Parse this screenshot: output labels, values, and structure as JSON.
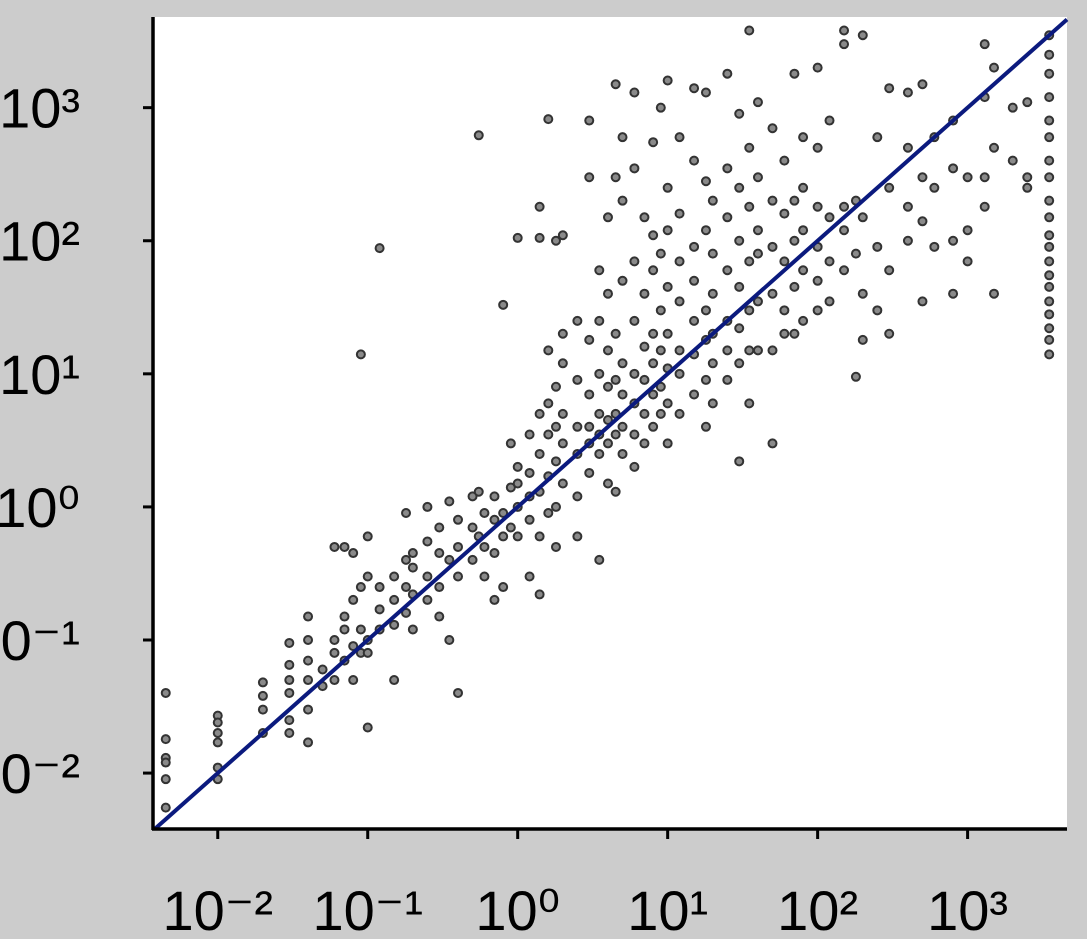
{
  "chart_data": {
    "type": "scatter",
    "xscale": "log",
    "yscale": "log",
    "xlim": [
      0.0037,
      4600
    ],
    "ylim": [
      0.0038,
      4800
    ],
    "xticks": [
      {
        "value": 0.01,
        "label": "10⁻²"
      },
      {
        "value": 0.1,
        "label": "10⁻¹"
      },
      {
        "value": 1,
        "label": "10⁰"
      },
      {
        "value": 10,
        "label": "10¹"
      },
      {
        "value": 100,
        "label": "10²"
      },
      {
        "value": 1000,
        "label": "10³"
      }
    ],
    "yticks": [
      {
        "value": 0.01,
        "label": "10⁻²"
      },
      {
        "value": 0.1,
        "label": "10⁻¹"
      },
      {
        "value": 1,
        "label": "10⁰"
      },
      {
        "value": 10,
        "label": "10¹"
      },
      {
        "value": 100,
        "label": "10²"
      },
      {
        "value": 1000,
        "label": "10³"
      }
    ],
    "color": "#8a8a8a",
    "edge_color": "#333333",
    "diagonal": true,
    "diagonal_color": "#0b1a7e",
    "x": [
      0.0045,
      0.0045,
      0.0045,
      0.0045,
      0.0045,
      0.0045,
      0.01,
      0.01,
      0.01,
      0.01,
      0.01,
      0.01,
      0.02,
      0.02,
      0.02,
      0.02,
      0.03,
      0.03,
      0.03,
      0.03,
      0.03,
      0.03,
      0.04,
      0.04,
      0.04,
      0.04,
      0.04,
      0.04,
      0.05,
      0.05,
      0.06,
      0.06,
      0.06,
      0.06,
      0.07,
      0.07,
      0.07,
      0.07,
      0.08,
      0.08,
      0.08,
      0.08,
      0.09,
      0.09,
      0.09,
      0.09,
      0.1,
      0.1,
      0.1,
      0.1,
      0.1,
      0.12,
      0.12,
      0.12,
      0.12,
      0.15,
      0.15,
      0.15,
      0.15,
      0.18,
      0.18,
      0.18,
      0.18,
      0.2,
      0.2,
      0.2,
      0.2,
      0.25,
      0.25,
      0.25,
      0.25,
      0.3,
      0.3,
      0.3,
      0.3,
      0.35,
      0.35,
      0.35,
      0.4,
      0.4,
      0.4,
      0.4,
      0.5,
      0.5,
      0.5,
      0.55,
      0.55,
      0.55,
      0.6,
      0.6,
      0.6,
      0.7,
      0.7,
      0.7,
      0.7,
      0.8,
      0.8,
      0.8,
      0.8,
      0.9,
      0.9,
      0.9,
      1,
      1,
      1,
      1,
      1,
      1.2,
      1.2,
      1.2,
      1.2,
      1.2,
      1.4,
      1.4,
      1.4,
      1.4,
      1.4,
      1.4,
      1.4,
      1.6,
      1.6,
      1.6,
      1.6,
      1.6,
      1.6,
      1.8,
      1.8,
      1.8,
      1.8,
      1.8,
      1.8,
      2,
      2,
      2,
      2,
      2,
      2,
      2.5,
      2.5,
      2.5,
      2.5,
      2.5,
      2.5,
      3,
      3,
      3,
      3,
      3,
      3,
      3,
      3.5,
      3.5,
      3.5,
      3.5,
      3.5,
      3.5,
      3.5,
      4,
      4,
      4,
      4,
      4,
      4,
      4,
      4.5,
      4.5,
      4.5,
      4.5,
      4.5,
      4.5,
      4.5,
      5,
      5,
      5,
      5,
      5,
      5,
      5,
      6,
      6,
      6,
      6,
      6,
      6,
      6,
      6,
      7,
      7,
      7,
      7,
      7,
      7,
      8,
      8,
      8,
      8,
      8,
      8,
      8,
      9,
      9,
      9,
      9,
      9,
      9,
      10,
      10,
      10,
      10,
      10,
      10,
      10,
      10,
      12,
      12,
      12,
      12,
      12,
      12,
      12,
      15,
      15,
      15,
      15,
      15,
      15,
      15,
      18,
      18,
      18,
      18,
      18,
      18,
      18,
      20,
      20,
      20,
      20,
      20,
      20,
      25,
      25,
      25,
      25,
      25,
      25,
      25,
      30,
      30,
      30,
      30,
      30,
      30,
      30,
      35,
      35,
      35,
      35,
      35,
      35,
      35,
      40,
      40,
      40,
      40,
      40,
      40,
      50,
      50,
      50,
      50,
      50,
      50,
      60,
      60,
      60,
      60,
      60,
      70,
      70,
      70,
      70,
      70,
      80,
      80,
      80,
      80,
      80,
      100,
      100,
      100,
      100,
      100,
      100,
      120,
      120,
      120,
      120,
      150,
      150,
      150,
      150,
      150,
      180,
      180,
      180,
      200,
      200,
      200,
      200,
      250,
      250,
      250,
      300,
      300,
      300,
      300,
      400,
      400,
      400,
      400,
      500,
      500,
      500,
      500,
      600,
      600,
      600,
      800,
      800,
      800,
      800,
      1000,
      1000,
      1000,
      1300,
      1300,
      1300,
      1300,
      1500,
      1500,
      1500,
      2000,
      2000,
      2500,
      2500,
      2500,
      3500,
      3500,
      3500,
      3500,
      3500,
      3500,
      3500,
      3500,
      3500,
      3500,
      3500,
      3500,
      3500,
      3500,
      3500,
      3500,
      3500,
      3500,
      3500,
      3500
    ],
    "values": [
      0.04,
      0.018,
      0.013,
      0.012,
      0.009,
      0.0055,
      0.027,
      0.024,
      0.02,
      0.017,
      0.011,
      0.009,
      0.048,
      0.038,
      0.03,
      0.02,
      0.095,
      0.065,
      0.05,
      0.04,
      0.025,
      0.02,
      0.15,
      0.1,
      0.07,
      0.05,
      0.03,
      0.017,
      0.06,
      0.045,
      0.5,
      0.1,
      0.08,
      0.05,
      0.5,
      0.15,
      0.12,
      0.07,
      0.45,
      0.2,
      0.09,
      0.05,
      14,
      0.25,
      0.12,
      0.08,
      0.6,
      0.3,
      0.1,
      0.08,
      0.022,
      88,
      0.25,
      0.17,
      0.12,
      0.3,
      0.2,
      0.13,
      0.05,
      0.9,
      0.4,
      0.25,
      0.16,
      0.45,
      0.35,
      0.22,
      0.12,
      1.0,
      0.55,
      0.3,
      0.2,
      0.7,
      0.45,
      0.25,
      0.15,
      1.1,
      0.4,
      0.1,
      0.8,
      0.5,
      0.3,
      0.04,
      1.2,
      0.7,
      0.4,
      620,
      1.3,
      0.6,
      0.9,
      0.5,
      0.3,
      1.2,
      0.8,
      0.45,
      0.2,
      33,
      0.9,
      0.6,
      0.25,
      3,
      1.4,
      0.7,
      105,
      2,
      1.5,
      1,
      0.6,
      3.5,
      1.8,
      1.2,
      0.8,
      0.3,
      180,
      105,
      5,
      2.5,
      1.3,
      0.6,
      0.22,
      820,
      15,
      6,
      3.5,
      1.7,
      0.9,
      100,
      8,
      4,
      2.2,
      1,
      0.5,
      110,
      20,
      12,
      5,
      3,
      1.5,
      25,
      9,
      4,
      2.5,
      1.2,
      0.6,
      800,
      300,
      18,
      7,
      4,
      3,
      1.8,
      60,
      25,
      10,
      5,
      3.5,
      2.5,
      0.4,
      150,
      40,
      15,
      8,
      4.5,
      3,
      1.5,
      1500,
      300,
      20,
      9,
      5,
      3.5,
      1.3,
      600,
      200,
      50,
      12,
      7,
      4,
      2.5,
      1300,
      350,
      70,
      25,
      10,
      6,
      3.5,
      2,
      150,
      40,
      16,
      9,
      5,
      3,
      550,
      110,
      60,
      20,
      12,
      7,
      4,
      1000,
      80,
      30,
      15,
      8,
      5,
      1600,
      250,
      120,
      45,
      20,
      11,
      6,
      3,
      600,
      160,
      70,
      35,
      15,
      10,
      5,
      1400,
      400,
      90,
      50,
      25,
      14,
      7,
      1300,
      280,
      120,
      30,
      18,
      9,
      4,
      200,
      80,
      40,
      20,
      12,
      6,
      1800,
      350,
      150,
      60,
      25,
      15,
      9,
      900,
      250,
      100,
      45,
      22,
      12,
      2.2,
      3800,
      500,
      180,
      70,
      30,
      15,
      6,
      1100,
      300,
      120,
      80,
      35,
      15,
      700,
      200,
      90,
      40,
      15,
      3,
      400,
      160,
      70,
      30,
      20,
      1800,
      200,
      100,
      45,
      20,
      600,
      250,
      120,
      60,
      25,
      2000,
      500,
      180,
      90,
      50,
      30,
      800,
      150,
      70,
      35,
      3800,
      3000,
      180,
      120,
      60,
      200,
      80,
      9.5,
      3500,
      150,
      40,
      18,
      600,
      90,
      30,
      1400,
      250,
      60,
      20,
      1300,
      500,
      180,
      100,
      1500,
      300,
      140,
      35,
      600,
      250,
      90,
      800,
      350,
      100,
      40,
      300,
      120,
      70,
      3000,
      1200,
      300,
      180,
      2000,
      500,
      40,
      1000,
      400,
      1100,
      300,
      250,
      3500,
      2500,
      1800,
      1200,
      800,
      600,
      400,
      300,
      200,
      150,
      110,
      90,
      70,
      55,
      45,
      35,
      28,
      22,
      18,
      14
    ]
  }
}
